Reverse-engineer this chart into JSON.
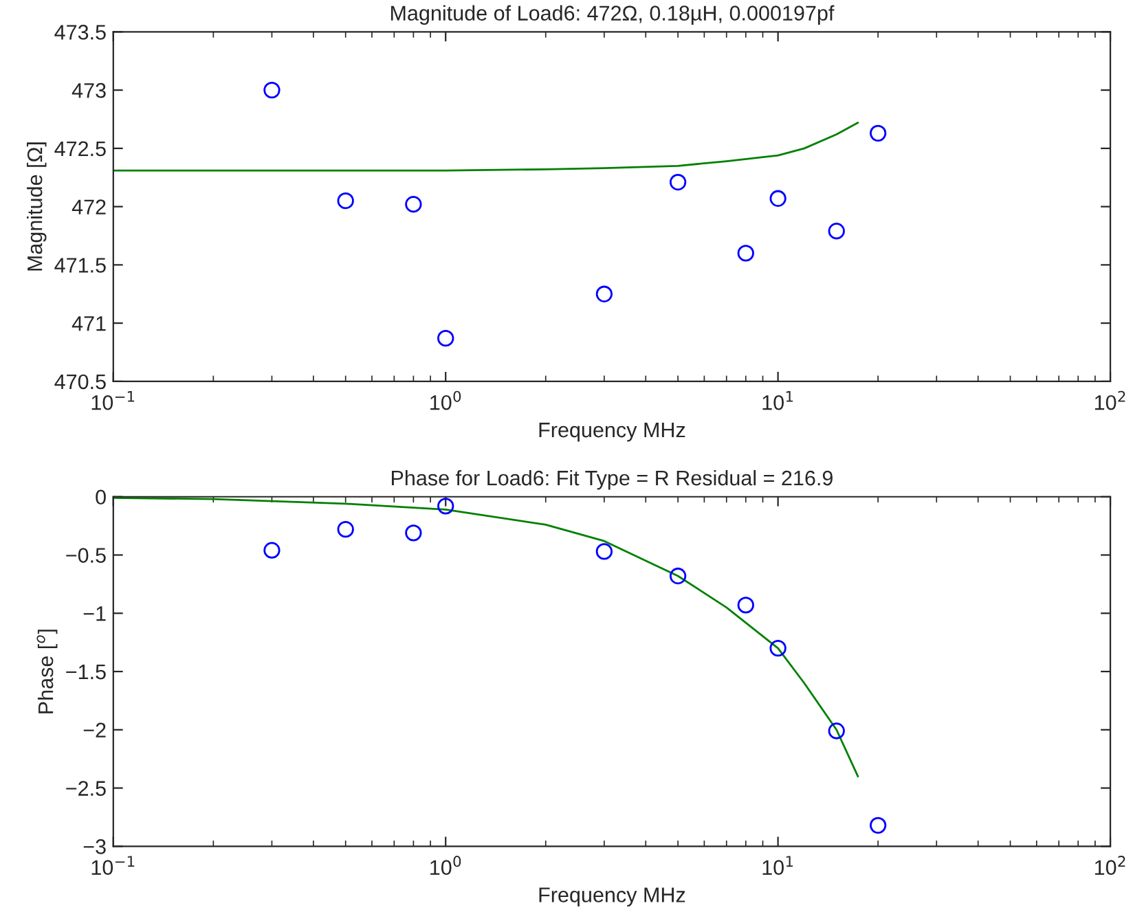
{
  "chart_data": [
    {
      "type": "scatter",
      "title": "Magnitude of Load6: 472Ω, 0.18µH, 0.000197pf",
      "xlabel": "Frequency MHz",
      "ylabel": "Magnitude [Ω]",
      "log": "x",
      "xlim": [
        0.1,
        100
      ],
      "ylim": [
        470.5,
        473.5
      ],
      "xticks": [
        {
          "value": 0.1,
          "label": "10$^{−1}$"
        },
        {
          "value": 1,
          "label": "10$^{0}$"
        },
        {
          "value": 10,
          "label": "10$^{1}$"
        },
        {
          "value": 100,
          "label": "10$^{2}$"
        }
      ],
      "yticks": [
        470.5,
        471,
        471.5,
        472,
        472.5,
        473,
        473.5
      ],
      "grid": false,
      "series": [
        {
          "marker": "circle",
          "color": "#0000ff",
          "x": [
            0.3,
            0.5,
            0.8,
            1,
            3,
            5,
            8,
            10,
            15,
            20
          ],
          "values": [
            473.0,
            472.05,
            472.02,
            470.87,
            471.25,
            472.21,
            471.6,
            472.07,
            471.79,
            472.63
          ]
        },
        {
          "type": "line",
          "marker": "none",
          "line_style": "solid",
          "color": "#008000",
          "x": [
            0.1,
            1,
            2,
            3,
            5,
            7,
            10,
            12,
            15,
            17.4
          ],
          "values": [
            472.31,
            472.31,
            472.32,
            472.33,
            472.35,
            472.39,
            472.44,
            472.5,
            472.62,
            472.72
          ]
        }
      ]
    },
    {
      "type": "scatter",
      "title": "Phase for Load6: Fit Type = R Residual = 216.9",
      "xlabel": "Frequency MHz",
      "ylabel": "Phase [$^{o}$]",
      "log": "x",
      "xlim": [
        0.1,
        100
      ],
      "ylim": [
        -3,
        0
      ],
      "xticks": [
        {
          "value": 0.1,
          "label": "10$^{−1}$"
        },
        {
          "value": 1,
          "label": "10$^{0}$"
        },
        {
          "value": 10,
          "label": "10$^{1}$"
        },
        {
          "value": 100,
          "label": "10$^{2}$"
        }
      ],
      "yticks": [
        {
          "value": -3,
          "label": "−3"
        },
        {
          "value": -2.5,
          "label": "−2.5"
        },
        {
          "value": -2,
          "label": "−2"
        },
        {
          "value": -1.5,
          "label": "−1.5"
        },
        {
          "value": -1,
          "label": "−1"
        },
        {
          "value": -0.5,
          "label": "−0.5"
        },
        0
      ],
      "grid": false,
      "series": [
        {
          "marker": "circle",
          "color": "#0000ff",
          "x": [
            0.3,
            0.5,
            0.8,
            1,
            3,
            5,
            8,
            10,
            15,
            20
          ],
          "values": [
            -0.46,
            -0.28,
            -0.31,
            -0.08,
            -0.47,
            -0.68,
            -0.93,
            -1.3,
            -2.01,
            -2.82
          ]
        },
        {
          "type": "line",
          "marker": "none",
          "line_style": "solid",
          "color": "#008000",
          "x": [
            0.1,
            0.2,
            0.5,
            1,
            2,
            3,
            5,
            7,
            10,
            12,
            15,
            17.4
          ],
          "values": [
            -0.01,
            -0.02,
            -0.06,
            -0.11,
            -0.24,
            -0.38,
            -0.68,
            -0.95,
            -1.3,
            -1.6,
            -2.0,
            -2.4
          ]
        }
      ]
    }
  ]
}
